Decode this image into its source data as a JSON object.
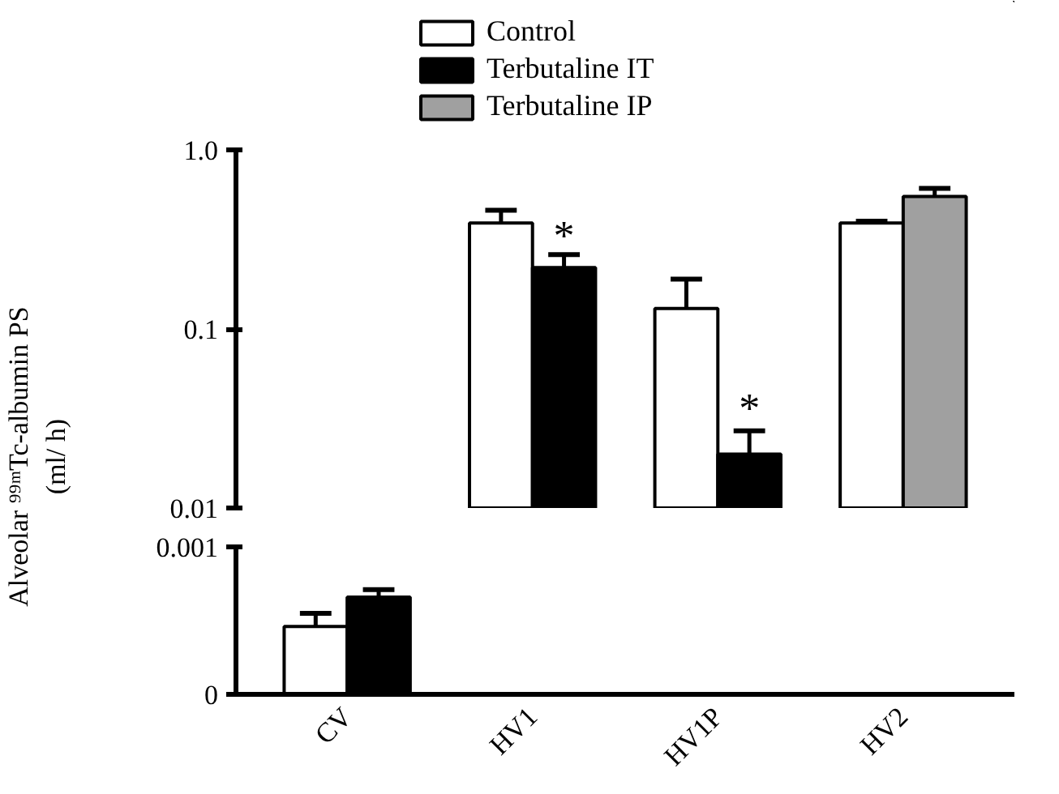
{
  "chart_data": [
    {
      "type": "bar",
      "categories": [
        "CV",
        "HV1",
        "HV1P",
        "HV2"
      ],
      "ylabel": "Alveolar ⁹⁹ᵐTc-albumin PS\n(ml/ h)",
      "log": true,
      "ylim": [
        0.01,
        1
      ],
      "yticks": [
        0.01,
        0.1,
        {
          "value": 1,
          "label": "1.0"
        }
      ],
      "tick_labels": "y",
      "grid": false,
      "legend": "top",
      "series": [
        {
          "name": "Control",
          "color": "#ffffff",
          "values": [
            null,
            0.39,
            0.13,
            0.39
          ],
          "errors": [
            null,
            [
              0.39,
              0.46
            ],
            [
              0.13,
              0.19
            ],
            [
              0.39,
              0.4
            ]
          ]
        },
        {
          "name": "Terbutaline IT",
          "color": "#000000",
          "values": [
            null,
            0.22,
            0.02,
            null
          ],
          "errors": [
            null,
            [
              0.22,
              0.26
            ],
            [
              0.02,
              0.027
            ],
            null
          ]
        },
        {
          "name": "Terbutaline IP",
          "color": "#a0a0a0",
          "values": [
            null,
            null,
            null,
            0.55
          ],
          "errors": [
            null,
            null,
            null,
            [
              0.55,
              0.61
            ]
          ]
        }
      ],
      "annotations": [
        {
          "text": "*",
          "x": "HV1",
          "y": 0.33
        },
        {
          "text": "*",
          "x": "HV1P",
          "y": 0.036
        }
      ]
    },
    {
      "type": "bar",
      "categories": [
        "CV",
        "HV1",
        "HV1P",
        "HV2"
      ],
      "ylim": [
        0,
        0.001
      ],
      "yticks": [
        0,
        0.001
      ],
      "grid": false,
      "series": [
        {
          "color": "#ffffff",
          "values": [
            0.00046,
            null,
            null,
            null
          ],
          "errors": [
            [
              0.00046,
              0.00055
            ],
            null,
            null,
            null
          ]
        },
        {
          "color": "#000000",
          "values": [
            0.00066,
            null,
            null,
            null
          ],
          "errors": [
            [
              0.00066,
              0.00071
            ],
            null,
            null,
            null
          ]
        }
      ]
    }
  ]
}
